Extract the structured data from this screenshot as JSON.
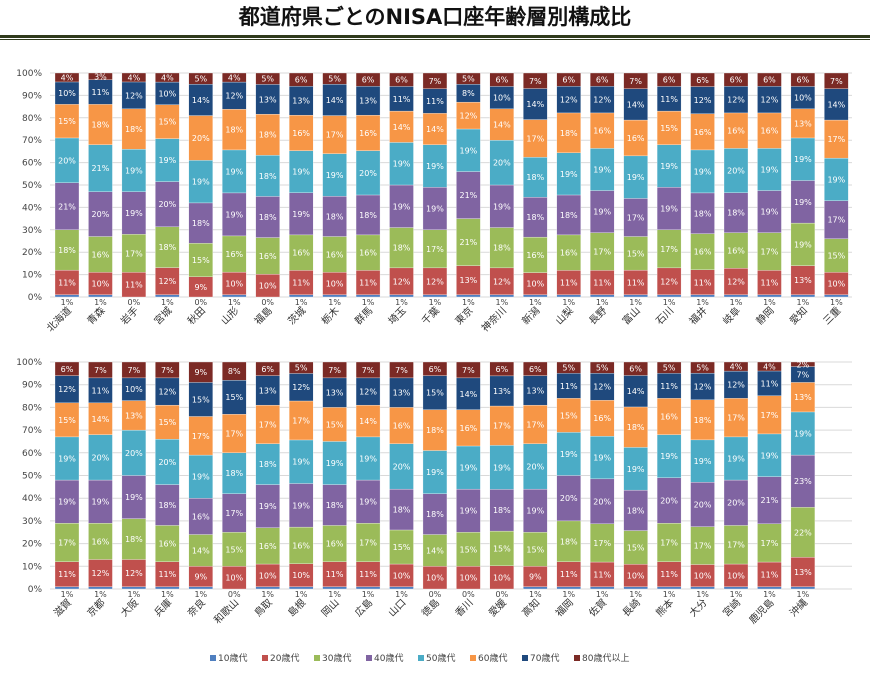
{
  "title": "都道府県ごとのNISA口座年齢層別構成比",
  "chart_data": [
    {
      "type": "bar",
      "stacked": "percent",
      "title": "",
      "yticks": [
        "0%",
        "10%",
        "20%",
        "30%",
        "40%",
        "50%",
        "60%",
        "70%",
        "80%",
        "90%",
        "100%"
      ],
      "ylim": [
        0,
        100
      ],
      "grid": true,
      "categories": [
        "北海道",
        "青森",
        "岩手",
        "宮城",
        "秋田",
        "山形",
        "福島",
        "茨城",
        "栃木",
        "群馬",
        "埼玉",
        "千葉",
        "東京",
        "神奈川",
        "新潟",
        "山梨",
        "長野",
        "富山",
        "石川",
        "福井",
        "岐阜",
        "静岡",
        "愛知",
        "三重"
      ],
      "series": [
        {
          "name": "10歳代",
          "values": [
            1,
            1,
            0,
            1,
            0,
            1,
            0,
            1,
            1,
            1,
            1,
            1,
            1,
            1,
            1,
            1,
            1,
            1,
            1,
            1,
            1,
            1,
            1,
            1
          ]
        },
        {
          "name": "20歳代",
          "values": [
            11,
            10,
            11,
            12,
            9,
            10,
            10,
            11,
            10,
            11,
            12,
            12,
            13,
            12,
            10,
            11,
            11,
            11,
            12,
            11,
            12,
            11,
            13,
            10
          ]
        },
        {
          "name": "30歳代",
          "values": [
            18,
            16,
            17,
            18,
            15,
            16,
            16,
            16,
            16,
            16,
            18,
            17,
            21,
            18,
            16,
            16,
            17,
            15,
            17,
            16,
            16,
            17,
            19,
            15
          ]
        },
        {
          "name": "40歳代",
          "values": [
            21,
            20,
            19,
            20,
            18,
            19,
            18,
            19,
            18,
            18,
            19,
            19,
            21,
            19,
            18,
            18,
            19,
            17,
            19,
            18,
            18,
            19,
            19,
            17
          ]
        },
        {
          "name": "50歳代",
          "values": [
            20,
            21,
            19,
            19,
            19,
            19,
            18,
            19,
            19,
            20,
            19,
            19,
            19,
            20,
            18,
            19,
            19,
            19,
            19,
            19,
            20,
            19,
            19,
            19
          ]
        },
        {
          "name": "60歳代",
          "values": [
            15,
            18,
            18,
            15,
            20,
            18,
            18,
            16,
            17,
            16,
            14,
            14,
            12,
            14,
            17,
            18,
            16,
            16,
            15,
            16,
            16,
            16,
            13,
            17
          ]
        },
        {
          "name": "70歳代",
          "values": [
            10,
            11,
            12,
            10,
            14,
            12,
            13,
            13,
            14,
            13,
            11,
            11,
            8,
            10,
            14,
            12,
            12,
            14,
            11,
            12,
            12,
            12,
            10,
            14
          ]
        },
        {
          "name": "80歳代以上",
          "values": [
            4,
            3,
            4,
            4,
            5,
            4,
            5,
            6,
            5,
            6,
            6,
            7,
            5,
            6,
            7,
            6,
            6,
            7,
            6,
            6,
            6,
            6,
            6,
            7
          ]
        }
      ]
    },
    {
      "type": "bar",
      "stacked": "percent",
      "title": "",
      "yticks": [
        "0%",
        "10%",
        "20%",
        "30%",
        "40%",
        "50%",
        "60%",
        "70%",
        "80%",
        "90%",
        "100%"
      ],
      "ylim": [
        0,
        100
      ],
      "grid": true,
      "categories": [
        "滋賀",
        "京都",
        "大阪",
        "兵庫",
        "奈良",
        "和歌山",
        "鳥取",
        "島根",
        "岡山",
        "広島",
        "山口",
        "徳島",
        "香川",
        "愛媛",
        "高知",
        "福岡",
        "佐賀",
        "長崎",
        "熊本",
        "大分",
        "宮崎",
        "鹿児島",
        "沖縄"
      ],
      "series": [
        {
          "name": "10歳代",
          "values": [
            1,
            1,
            1,
            1,
            1,
            0,
            1,
            1,
            1,
            1,
            1,
            0,
            0,
            0,
            1,
            1,
            1,
            1,
            1,
            1,
            1,
            1,
            1
          ]
        },
        {
          "name": "20歳代",
          "values": [
            11,
            12,
            12,
            11,
            9,
            10,
            10,
            10,
            11,
            11,
            10,
            10,
            10,
            10,
            9,
            11,
            11,
            10,
            11,
            10,
            10,
            11,
            13
          ]
        },
        {
          "name": "30歳代",
          "values": [
            17,
            16,
            18,
            16,
            14,
            15,
            16,
            16,
            16,
            17,
            15,
            14,
            15,
            15,
            15,
            18,
            17,
            15,
            17,
            17,
            17,
            17,
            22
          ]
        },
        {
          "name": "40歳代",
          "values": [
            19,
            19,
            19,
            18,
            16,
            17,
            19,
            19,
            18,
            19,
            18,
            18,
            19,
            18,
            19,
            20,
            20,
            18,
            20,
            20,
            20,
            21,
            23
          ]
        },
        {
          "name": "50歳代",
          "values": [
            19,
            20,
            20,
            20,
            19,
            18,
            18,
            19,
            19,
            19,
            20,
            19,
            19,
            19,
            20,
            19,
            19,
            19,
            19,
            19,
            19,
            19,
            19
          ]
        },
        {
          "name": "60歳代",
          "values": [
            15,
            14,
            13,
            15,
            17,
            17,
            17,
            17,
            15,
            14,
            16,
            18,
            16,
            17,
            17,
            15,
            16,
            18,
            16,
            18,
            17,
            17,
            13
          ]
        },
        {
          "name": "70歳代",
          "values": [
            12,
            11,
            10,
            12,
            15,
            15,
            13,
            12,
            13,
            12,
            13,
            15,
            14,
            13,
            13,
            11,
            12,
            14,
            11,
            12,
            12,
            11,
            7
          ]
        },
        {
          "name": "80歳代以上",
          "values": [
            6,
            7,
            7,
            7,
            9,
            8,
            6,
            5,
            7,
            7,
            7,
            6,
            7,
            6,
            6,
            5,
            5,
            6,
            5,
            5,
            4,
            4,
            2
          ]
        }
      ]
    }
  ],
  "legend": [
    "10歳代",
    "20歳代",
    "30歳代",
    "40歳代",
    "50歳代",
    "60歳代",
    "70歳代",
    "80歳代以上"
  ],
  "colors": [
    "#4f7fc0",
    "#c0504d",
    "#9bbb59",
    "#8064a2",
    "#4bacc6",
    "#f79646",
    "#1f497d",
    "#7b2a25"
  ],
  "rule_color": "#2f3a1c"
}
